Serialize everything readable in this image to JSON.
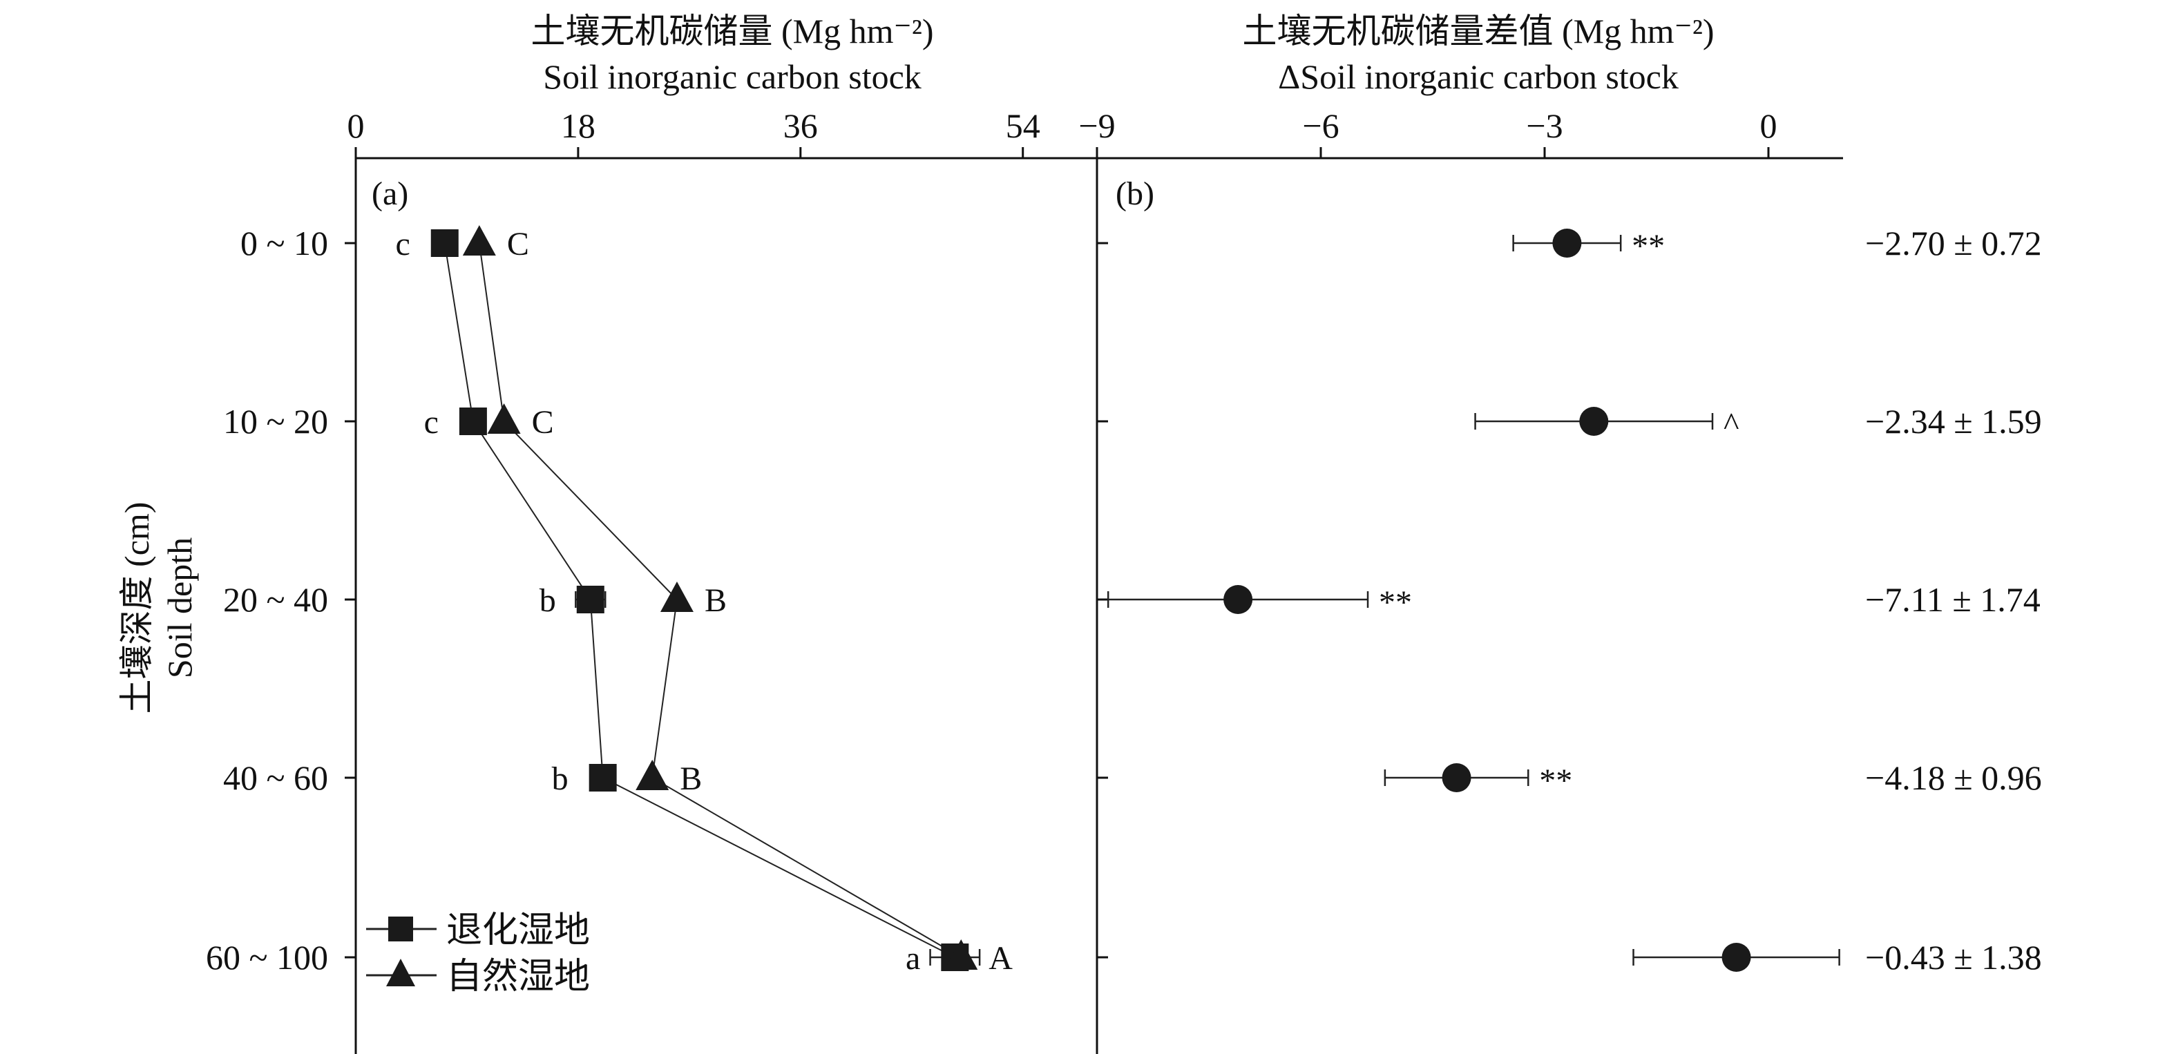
{
  "colors": {
    "ink": "#111111",
    "marker": "#1a1a1a"
  },
  "chart_data": [
    {
      "panel": "(a)",
      "type": "line",
      "orientation": "horizontal",
      "title_cn": "土壤无机碳储量 (Mg hm⁻²)",
      "title_en": "Soil inorganic carbon stock",
      "ylabel_cn": "土壤深度 (cm)",
      "ylabel_en": "Soil depth",
      "categories": [
        "0 ~ 10",
        "10 ~ 20",
        "20 ~ 40",
        "40 ~ 60",
        "60 ~ 100"
      ],
      "xlim": [
        0,
        60
      ],
      "xticks": [
        0,
        18,
        36,
        54
      ],
      "tick_labels": [
        "0",
        "18",
        "36",
        "54"
      ],
      "series": [
        {
          "name": "退化湿地",
          "marker": "square",
          "values": [
            7.2,
            9.5,
            19,
            20,
            48.5
          ],
          "errors": [
            0,
            0,
            1.2,
            0,
            2
          ],
          "letters": [
            "c",
            "c",
            "b",
            "b",
            "a"
          ],
          "letter_side": "left"
        },
        {
          "name": "自然湿地",
          "marker": "triangle",
          "values": [
            10,
            12,
            26,
            24,
            49
          ],
          "errors": [
            0,
            0,
            0,
            0,
            0
          ],
          "letters": [
            "C",
            "C",
            "B",
            "B",
            "A"
          ],
          "letter_side": "right"
        }
      ],
      "legend": "bottom-left"
    },
    {
      "panel": "(b)",
      "type": "scatter",
      "orientation": "horizontal",
      "title_cn": "土壤无机碳储量差值 (Mg hm⁻²)",
      "title_en": "ΔSoil inorganic carbon stock",
      "categories": [
        "0 ~ 10",
        "10 ~ 20",
        "20 ~ 40",
        "40 ~ 60",
        "60 ~ 100"
      ],
      "xlim": [
        -9,
        1
      ],
      "xticks": [
        -9,
        -6,
        -3,
        0
      ],
      "tick_labels": [
        "−9",
        "−6",
        "−3",
        "0"
      ],
      "values": [
        -2.7,
        -2.34,
        -7.11,
        -4.18,
        -0.43
      ],
      "errors": [
        0.72,
        1.59,
        1.74,
        0.96,
        1.38
      ],
      "significance": [
        "**",
        "^",
        "**",
        "**",
        ""
      ],
      "value_labels": [
        "−2.70 ± 0.72",
        "−2.34 ± 1.59",
        "−7.11 ± 1.74",
        "−4.18 ± 0.96",
        "−0.43 ± 1.38"
      ]
    }
  ]
}
